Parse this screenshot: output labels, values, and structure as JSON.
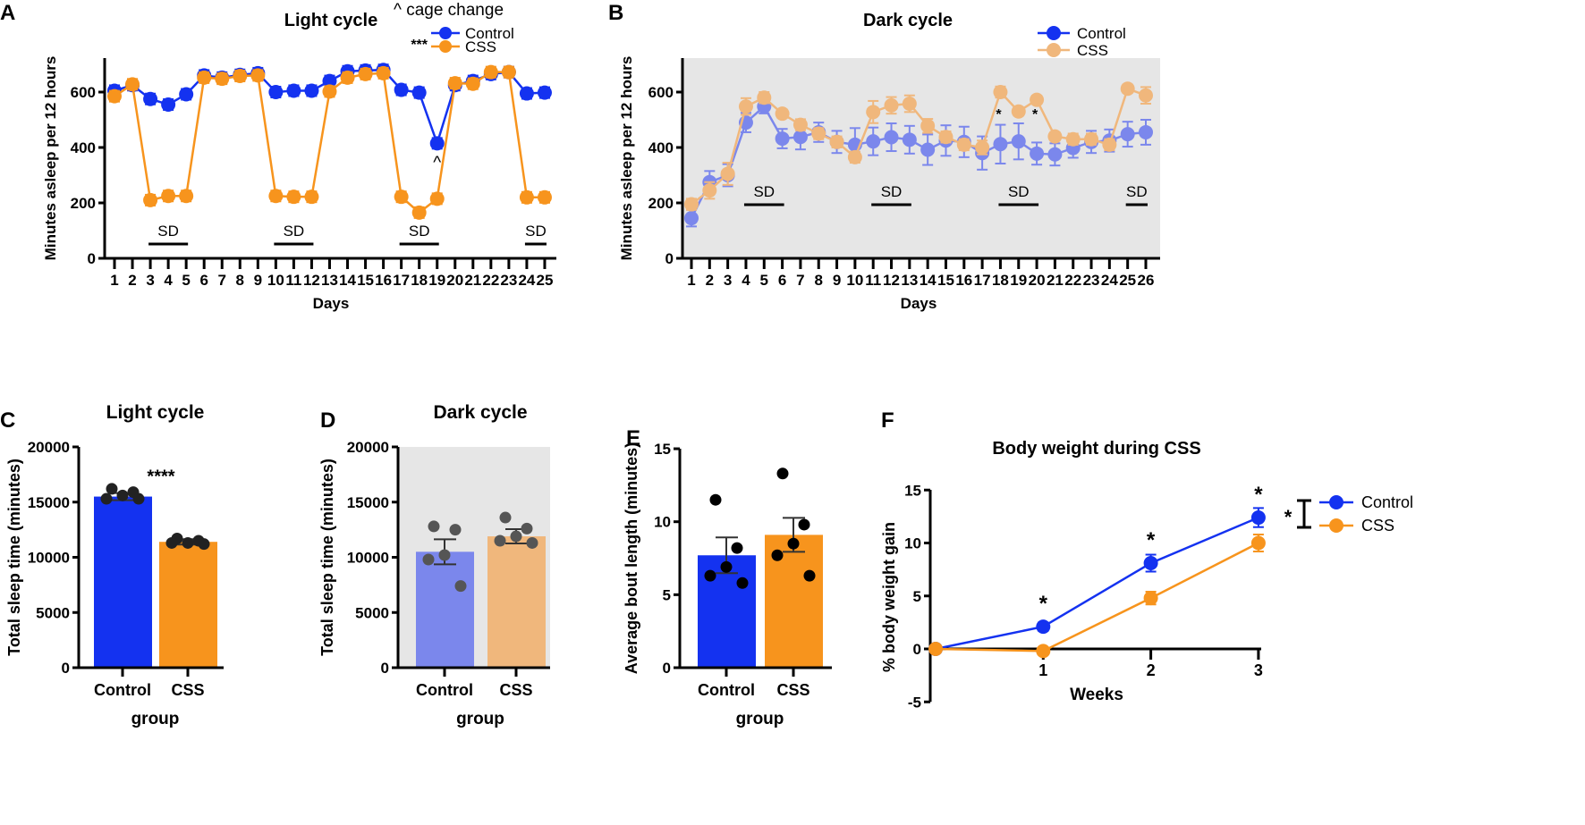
{
  "colors": {
    "control": "#1432f0",
    "css": "#f7941d",
    "control_light": "#7b87ec",
    "css_light": "#f0b77c",
    "shade": "#e6e6e6"
  },
  "chart_data": [
    {
      "panel": "A",
      "type": "line",
      "title": "Light cycle",
      "xlabel": "Days",
      "ylabel": "Minutes asleep per 12 hours",
      "ylim": [
        0,
        700
      ],
      "yticks": [
        0,
        200,
        400,
        600
      ],
      "x": [
        1,
        2,
        3,
        4,
        5,
        6,
        7,
        8,
        9,
        10,
        11,
        12,
        13,
        14,
        15,
        16,
        17,
        18,
        19,
        20,
        21,
        22,
        23,
        24,
        25
      ],
      "series": [
        {
          "name": "Control",
          "values": [
            605,
            625,
            575,
            555,
            592,
            660,
            652,
            662,
            668,
            600,
            605,
            605,
            640,
            675,
            678,
            680,
            608,
            598,
            415,
            625,
            640,
            665,
            672,
            595,
            598
          ]
        },
        {
          "name": "CSS",
          "values": [
            585,
            628,
            210,
            225,
            225,
            652,
            648,
            658,
            660,
            225,
            222,
            222,
            602,
            652,
            665,
            668,
            222,
            165,
            215,
            632,
            630,
            672,
            672,
            220,
            220
          ]
        }
      ],
      "annotations": {
        "cage_change": "^ cage change",
        "caret": "^",
        "sig": "***",
        "sd": "SD"
      },
      "sd_ranges": [
        [
          3,
          5
        ],
        [
          10,
          12
        ],
        [
          17,
          19
        ],
        [
          24,
          25
        ]
      ],
      "legend": "top-right"
    },
    {
      "panel": "B",
      "type": "line",
      "title": "Dark cycle",
      "xlabel": "Days",
      "ylabel": "Minutes asleep per 12 hours",
      "ylim": [
        0,
        700
      ],
      "yticks": [
        0,
        200,
        400,
        600
      ],
      "x": [
        1,
        2,
        3,
        4,
        5,
        6,
        7,
        8,
        9,
        10,
        11,
        12,
        13,
        14,
        15,
        16,
        17,
        18,
        19,
        20,
        21,
        22,
        23,
        24,
        25,
        26
      ],
      "series": [
        {
          "name": "Control",
          "values": [
            145,
            275,
            300,
            490,
            548,
            432,
            438,
            455,
            420,
            410,
            422,
            437,
            428,
            392,
            425,
            420,
            380,
            412,
            422,
            378,
            375,
            398,
            420,
            425,
            448,
            455
          ]
        },
        {
          "name": "CSS",
          "values": [
            195,
            245,
            305,
            548,
            580,
            522,
            482,
            450,
            420,
            365,
            528,
            552,
            558,
            478,
            438,
            410,
            400,
            600,
            530,
            572,
            440,
            430,
            430,
            410,
            612,
            588
          ]
        }
      ],
      "annotations": {
        "sd": "SD",
        "star": "*"
      },
      "sd_ranges": [
        [
          4,
          6
        ],
        [
          11,
          13
        ],
        [
          18,
          20
        ],
        [
          25,
          26
        ]
      ],
      "legend": "top-right",
      "shaded": true
    },
    {
      "panel": "C",
      "type": "bar",
      "title": "Light cycle",
      "xlabel": "group",
      "ylabel": "Total sleep time (minutes)",
      "ylim": [
        0,
        20000
      ],
      "yticks": [
        0,
        5000,
        10000,
        15000,
        20000
      ],
      "categories": [
        "Control",
        "CSS"
      ],
      "values": [
        15500,
        11400
      ],
      "points": [
        [
          16200,
          15900,
          15600,
          15300,
          15300
        ],
        [
          11700,
          11500,
          11300,
          11300,
          11200
        ]
      ],
      "sig": "****"
    },
    {
      "panel": "D",
      "type": "bar",
      "title": "Dark cycle",
      "xlabel": "group",
      "ylabel": "Total sleep time (minutes)",
      "ylim": [
        0,
        20000
      ],
      "yticks": [
        0,
        5000,
        10000,
        15000,
        20000
      ],
      "categories": [
        "Control",
        "CSS"
      ],
      "values": [
        10500,
        11900
      ],
      "points": [
        [
          12800,
          12500,
          10200,
          9800,
          7400
        ],
        [
          13600,
          12600,
          11900,
          11500,
          11300
        ]
      ],
      "shaded": true
    },
    {
      "panel": "E",
      "type": "bar",
      "title": "",
      "xlabel": "group",
      "ylabel": "Average bout length (minutes)",
      "ylim": [
        0,
        15
      ],
      "yticks": [
        0,
        5,
        10,
        15
      ],
      "categories": [
        "Control",
        "CSS"
      ],
      "values": [
        7.7,
        9.1
      ],
      "points": [
        [
          11.5,
          8.2,
          6.9,
          6.3,
          5.8
        ],
        [
          13.3,
          9.8,
          8.5,
          7.7,
          6.3
        ]
      ]
    },
    {
      "panel": "F",
      "type": "line",
      "title": "Body weight during CSS",
      "xlabel": "Weeks",
      "ylabel": "% body weight gain",
      "ylim": [
        -5,
        15
      ],
      "yticks": [
        -5,
        0,
        5,
        10,
        15
      ],
      "x": [
        0,
        1,
        2,
        3
      ],
      "xticks": [
        1,
        2,
        3
      ],
      "series": [
        {
          "name": "Control",
          "values": [
            0,
            2.1,
            8.1,
            12.4
          ]
        },
        {
          "name": "CSS",
          "values": [
            0,
            -0.2,
            4.8,
            10.0
          ]
        }
      ],
      "annotations": {
        "star": "*"
      },
      "legend": "right"
    }
  ]
}
